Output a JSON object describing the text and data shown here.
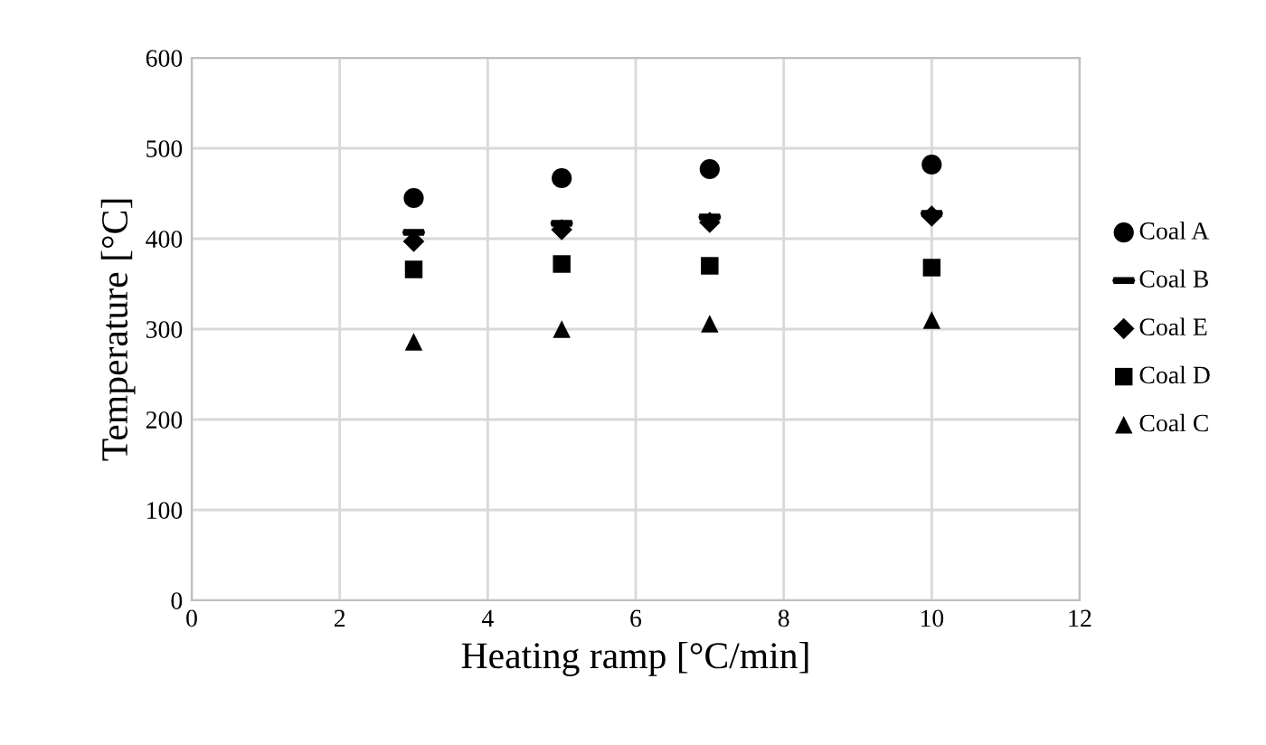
{
  "chart_data": {
    "type": "scatter",
    "xlabel": "Heating ramp [°C/min]",
    "ylabel": "Temperature [°C]",
    "x": [
      3,
      5,
      7,
      10
    ],
    "series": [
      {
        "name": "Coal A",
        "color": "#000000",
        "marker": "circle",
        "values": [
          445,
          467,
          477,
          482
        ]
      },
      {
        "name": "Coal B",
        "color": "#000000",
        "values": [
          407,
          417,
          424,
          428
        ]
      },
      {
        "name": "Coal E",
        "color": "#000000",
        "marker": "diamond",
        "values": [
          397,
          410,
          418,
          425
        ]
      },
      {
        "name": "Coal D",
        "color": "#000000",
        "marker": "square",
        "values": [
          366,
          372,
          370,
          368
        ]
      },
      {
        "name": "Coal C",
        "color": "#000000",
        "marker": "triangle",
        "values": [
          286,
          300,
          306,
          310
        ]
      }
    ],
    "xlim": [
      0,
      12
    ],
    "xticks": [
      0,
      2,
      4,
      6,
      8,
      10,
      12
    ],
    "ylim": [
      0,
      600
    ],
    "yticks": [
      0,
      100,
      200,
      300,
      400,
      500,
      600
    ],
    "grid": true,
    "legend": "right"
  }
}
